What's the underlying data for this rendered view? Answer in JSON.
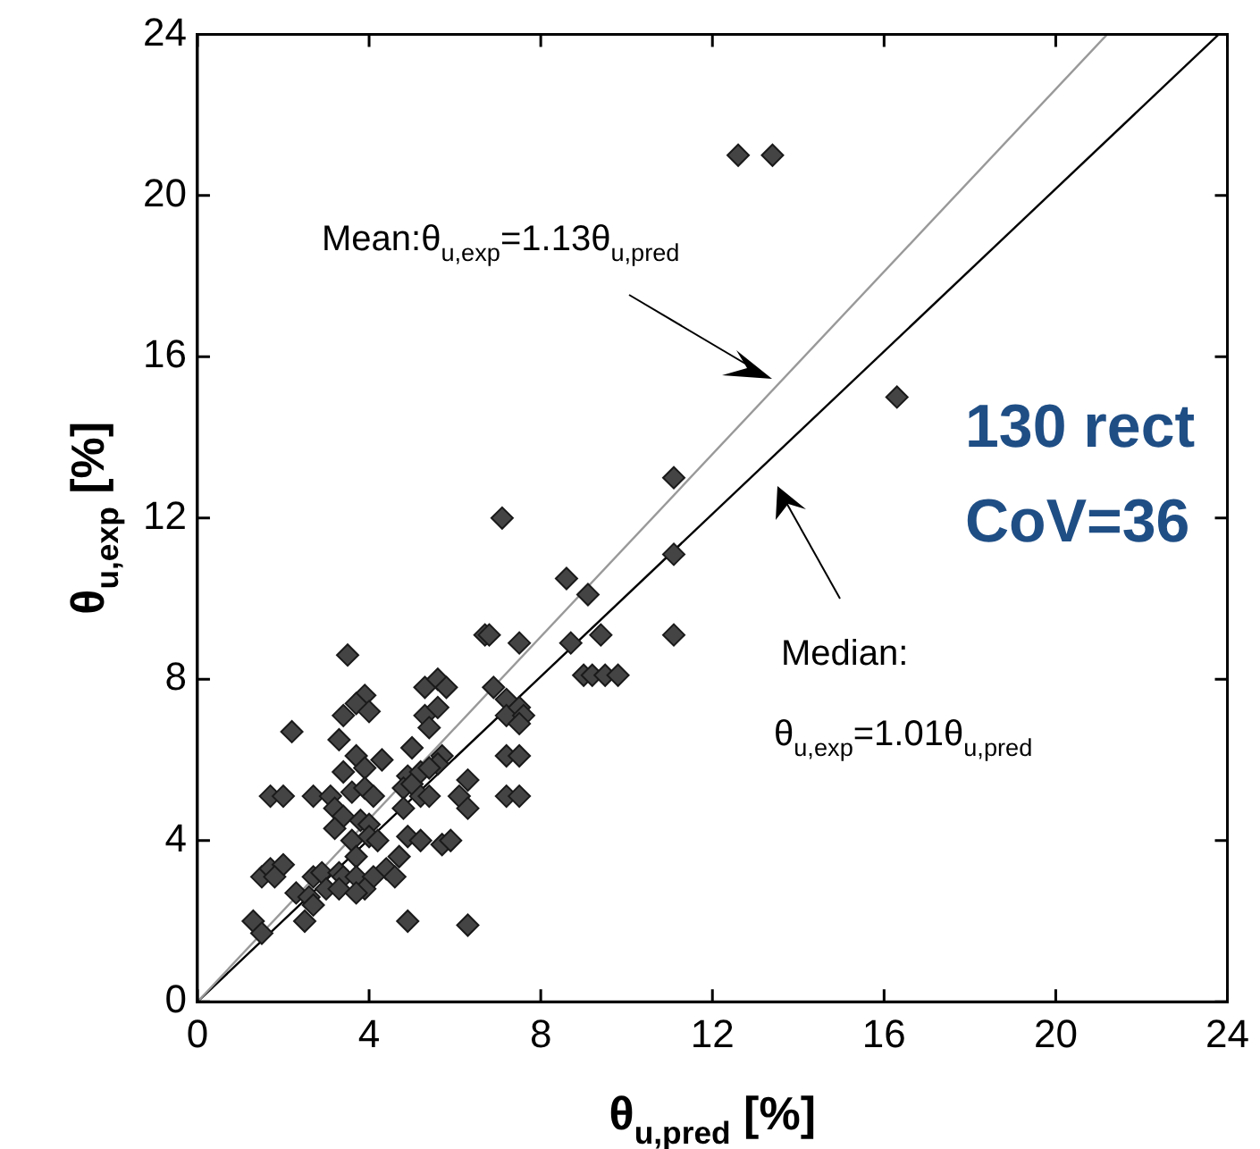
{
  "chart_data": {
    "type": "scatter",
    "xlabel": "θ$_{u,pred}$ [%]",
    "ylabel": "θ$_{u,exp}$ [%]",
    "xlim": [
      0,
      24
    ],
    "ylim": [
      0,
      24
    ],
    "xticks": [
      0,
      4,
      8,
      12,
      16,
      20,
      24
    ],
    "yticks": [
      0,
      4,
      8,
      12,
      16,
      20,
      24
    ],
    "marker": "diamond",
    "series": [
      {
        "color": "#444444",
        "x": [
          6.7,
          7.5,
          8.7,
          3.5,
          9.0,
          9.2,
          9.5,
          9.8,
          5.3,
          5.6,
          5.8,
          6.9,
          7.2,
          3.9,
          3.7,
          3.4,
          4.0,
          5.3,
          5.6,
          5.4,
          7.2,
          7.5,
          7.6,
          7.5,
          2.2,
          3.3,
          5.0,
          3.7,
          4.3,
          5.7,
          5.6,
          7.2,
          7.5,
          3.4,
          3.9,
          4.9,
          4.8,
          5.0,
          5.2,
          5.4,
          6.3,
          1.7,
          2.0,
          2.7,
          3.1,
          3.6,
          3.9,
          4.1,
          3.2,
          3.4,
          3.8,
          4.0,
          4.8,
          5.2,
          5.4,
          6.1,
          6.3,
          7.2,
          7.5,
          3.2,
          3.6,
          4.0,
          4.2,
          4.9,
          5.2,
          5.7,
          5.9,
          3.7,
          4.7,
          4.4,
          4.6,
          1.5,
          1.7,
          2.0,
          1.8,
          2.7,
          2.9,
          3.3,
          3.4,
          3.7,
          4.1,
          3.9,
          3.0,
          3.3,
          2.3,
          2.6,
          2.7,
          3.7,
          1.3,
          1.5,
          2.5,
          4.9,
          6.3,
          7.1,
          11.1,
          11.1,
          8.6,
          9.1,
          6.8,
          9.4,
          11.1,
          12.6,
          13.4,
          16.3
        ],
        "values": [
          9.1,
          8.9,
          8.9,
          8.6,
          8.1,
          8.1,
          8.1,
          8.1,
          7.8,
          8.0,
          7.8,
          7.8,
          7.5,
          7.6,
          7.4,
          7.1,
          7.2,
          7.1,
          7.3,
          6.8,
          7.1,
          7.3,
          7.1,
          6.9,
          6.7,
          6.5,
          6.3,
          6.1,
          6.0,
          6.1,
          5.9,
          6.1,
          6.1,
          5.7,
          5.8,
          5.6,
          5.3,
          5.4,
          5.7,
          5.8,
          5.5,
          5.1,
          5.1,
          5.1,
          5.1,
          5.2,
          5.3,
          5.1,
          4.8,
          4.6,
          4.5,
          4.4,
          4.8,
          5.1,
          5.1,
          5.1,
          4.8,
          5.1,
          5.1,
          4.3,
          4.0,
          4.1,
          4.0,
          4.1,
          4.0,
          3.9,
          4.0,
          3.6,
          3.6,
          3.3,
          3.1,
          3.1,
          3.3,
          3.4,
          3.1,
          3.1,
          3.2,
          3.2,
          3.1,
          3.1,
          3.1,
          2.8,
          2.8,
          2.8,
          2.7,
          2.6,
          2.4,
          2.7,
          2.0,
          1.7,
          2.0,
          2.0,
          1.9,
          12.0,
          13.0,
          11.1,
          10.5,
          10.1,
          9.1,
          9.1,
          9.1,
          21.0,
          21.0,
          15.0
        ]
      },
      {
        "type": "line",
        "marker": "none",
        "color": "#999999",
        "x": [
          0,
          21.2
        ],
        "values": [
          0,
          24
        ]
      },
      {
        "type": "line",
        "marker": "none",
        "color": "#000000",
        "x": [
          0,
          23.8
        ],
        "values": [
          0,
          24
        ]
      }
    ],
    "annotations": [
      "Mean:θ$_{u,exp}$=1.13θ$_{u,pred}$",
      "Median:",
      "θ$_{u,exp}$=1.01θ$_{u,pred}$",
      "130 rect",
      "CoV=36"
    ]
  }
}
